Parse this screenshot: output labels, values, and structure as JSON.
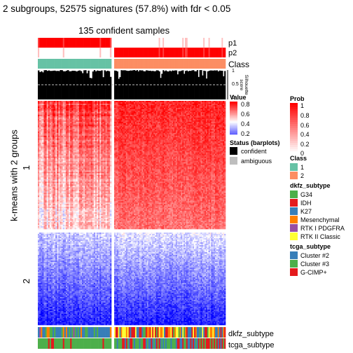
{
  "title": "2 subgroups, 52575 signatures (57.8%) with fdr < 0.05",
  "subtitle": "135 confident samples",
  "row_axis_label": "k-means with 2 groups",
  "row_group_labels": [
    "1",
    "2"
  ],
  "annotation_labels": {
    "p1": "p1",
    "p2": "p2",
    "class": "Class",
    "dkfz": "dkfz_subtype",
    "tcga": "tcga_subtype"
  },
  "silhouette_axis": {
    "label": "Silhouette\nscore",
    "ticks": [
      "1",
      "0.5",
      "0"
    ]
  },
  "colors": {
    "class1": "#66c2a5",
    "class2": "#fc8d62",
    "prob_high": "#ff0000",
    "prob_low": "#ffffff",
    "heat_high": "#ff0000",
    "heat_mid": "#ffffff",
    "heat_low": "#0000ff",
    "silhouette": "#000000"
  },
  "legends": {
    "value": {
      "title": "Value",
      "ticks": [
        "0.8",
        "0.6",
        "0.4",
        "0.2"
      ]
    },
    "status": {
      "title": "Status (barplots)",
      "items": [
        {
          "label": "confident",
          "color": "#000000"
        },
        {
          "label": "ambiguous",
          "color": "#bebebe"
        }
      ]
    },
    "prob": {
      "title": "Prob",
      "ticks": [
        "1",
        "0.8",
        "0.6",
        "0.4",
        "0.2",
        "0"
      ]
    },
    "class": {
      "title": "Class",
      "items": [
        {
          "label": "1",
          "color": "#66c2a5"
        },
        {
          "label": "2",
          "color": "#fc8d62"
        }
      ]
    },
    "dkfz": {
      "title": "dkfz_subtype",
      "items": [
        {
          "label": "G34",
          "color": "#4daf4a"
        },
        {
          "label": "IDH",
          "color": "#e41a1c"
        },
        {
          "label": "K27",
          "color": "#377eb8"
        },
        {
          "label": "Mesenchymal",
          "color": "#ff7f00"
        },
        {
          "label": "RTK I PDGFRA",
          "color": "#984ea3"
        },
        {
          "label": "RTK II Classic",
          "color": "#ffff33"
        }
      ]
    },
    "tcga": {
      "title": "tcga_subtype",
      "items": [
        {
          "label": "Cluster #2",
          "color": "#377eb8"
        },
        {
          "label": "Cluster #3",
          "color": "#4daf4a"
        },
        {
          "label": "G-CIMP+",
          "color": "#e41a1c"
        }
      ]
    }
  },
  "chart_data": {
    "type": "heatmap",
    "title": "2 subgroups, 52575 signatures (57.8%) with fdr < 0.05",
    "subtitle": "135 confident samples",
    "ylabel": "k-means with 2 groups",
    "sample_groups": [
      {
        "class": "1",
        "n_samples": 50
      },
      {
        "class": "2",
        "n_samples": 85
      }
    ],
    "row_groups": [
      "1",
      "2"
    ],
    "value_range": [
      0.2,
      0.8
    ],
    "prob_range": [
      0,
      1
    ],
    "silhouette_range": [
      0,
      1
    ],
    "silhouette_threshold": 0.5
  }
}
